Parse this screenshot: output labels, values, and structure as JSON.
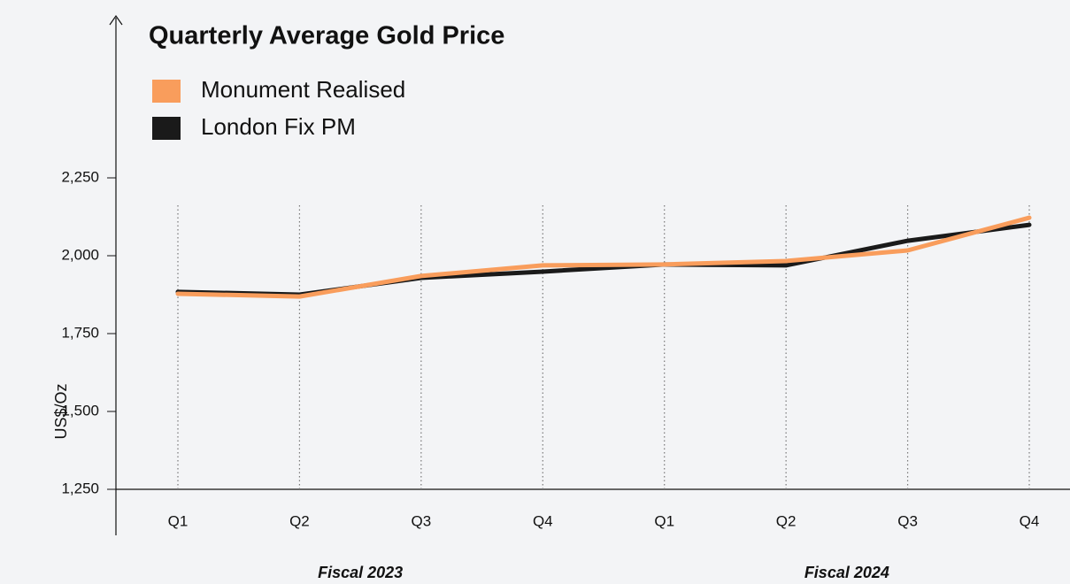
{
  "chart_data": {
    "type": "line",
    "title": "Quarterly Average Gold Price",
    "y_label": "US$/Oz",
    "categories": [
      "Q1",
      "Q2",
      "Q3",
      "Q4",
      "Q1",
      "Q2",
      "Q3",
      "Q4"
    ],
    "x_groups": [
      "Fiscal 2023",
      "Fiscal 2024"
    ],
    "series": [
      {
        "name": "London Fix PM",
        "color": "#1a1a1a",
        "values": [
          1884,
          1875,
          1929,
          1949,
          1972,
          1969,
          2048,
          2099
        ]
      },
      {
        "name": "Monument Realised",
        "color": "#f99d5c",
        "values": [
          1878,
          1869,
          1935,
          1969,
          1972,
          1983,
          2017,
          2122
        ]
      }
    ],
    "legend_order": [
      1,
      0
    ],
    "ylim": [
      1250,
      2250
    ],
    "yticks": [
      {
        "value": 1250,
        "label": "1,250"
      },
      {
        "value": 1500,
        "label": "1,500"
      },
      {
        "value": 1750,
        "label": "1,750"
      },
      {
        "value": 2000,
        "label": "2,000"
      },
      {
        "value": 2250,
        "label": "2,250"
      }
    ],
    "grid": "x"
  }
}
